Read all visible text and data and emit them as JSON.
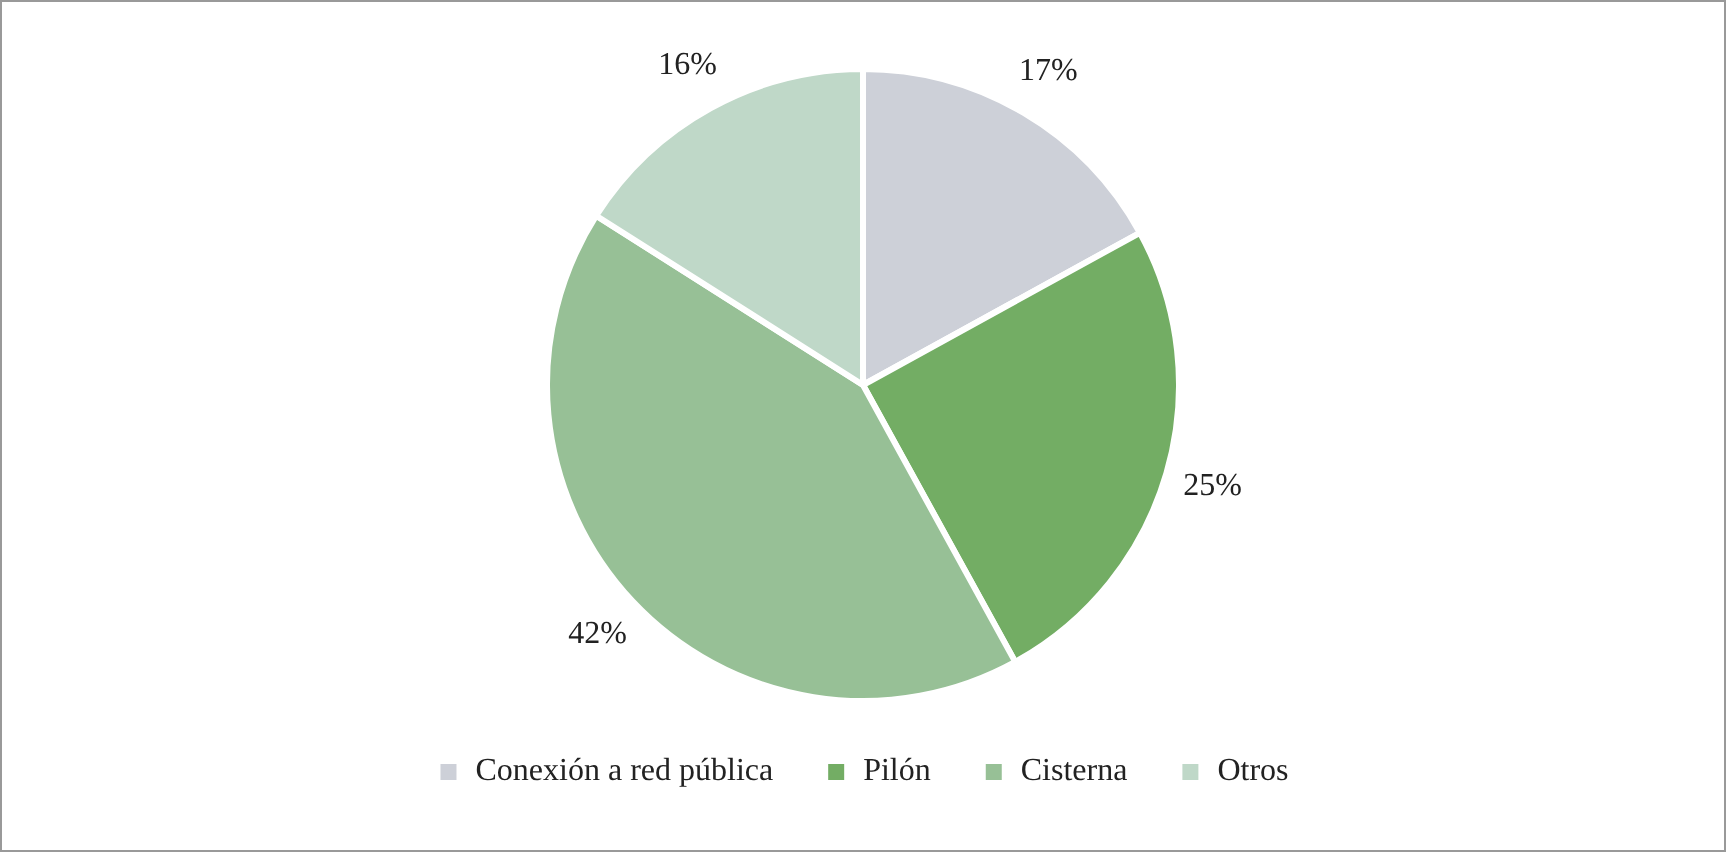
{
  "chart_data": {
    "type": "pie",
    "categories": [
      "Conexión a red pública",
      "Pilón",
      "Cisterna",
      "Otros"
    ],
    "values": [
      17,
      25,
      42,
      16
    ],
    "colors": [
      "#cdd0d8",
      "#73ad64",
      "#97c096",
      "#bfd8c8"
    ],
    "value_labels": [
      "17%",
      "25%",
      "42%",
      "16%"
    ],
    "legend": "bottom"
  }
}
